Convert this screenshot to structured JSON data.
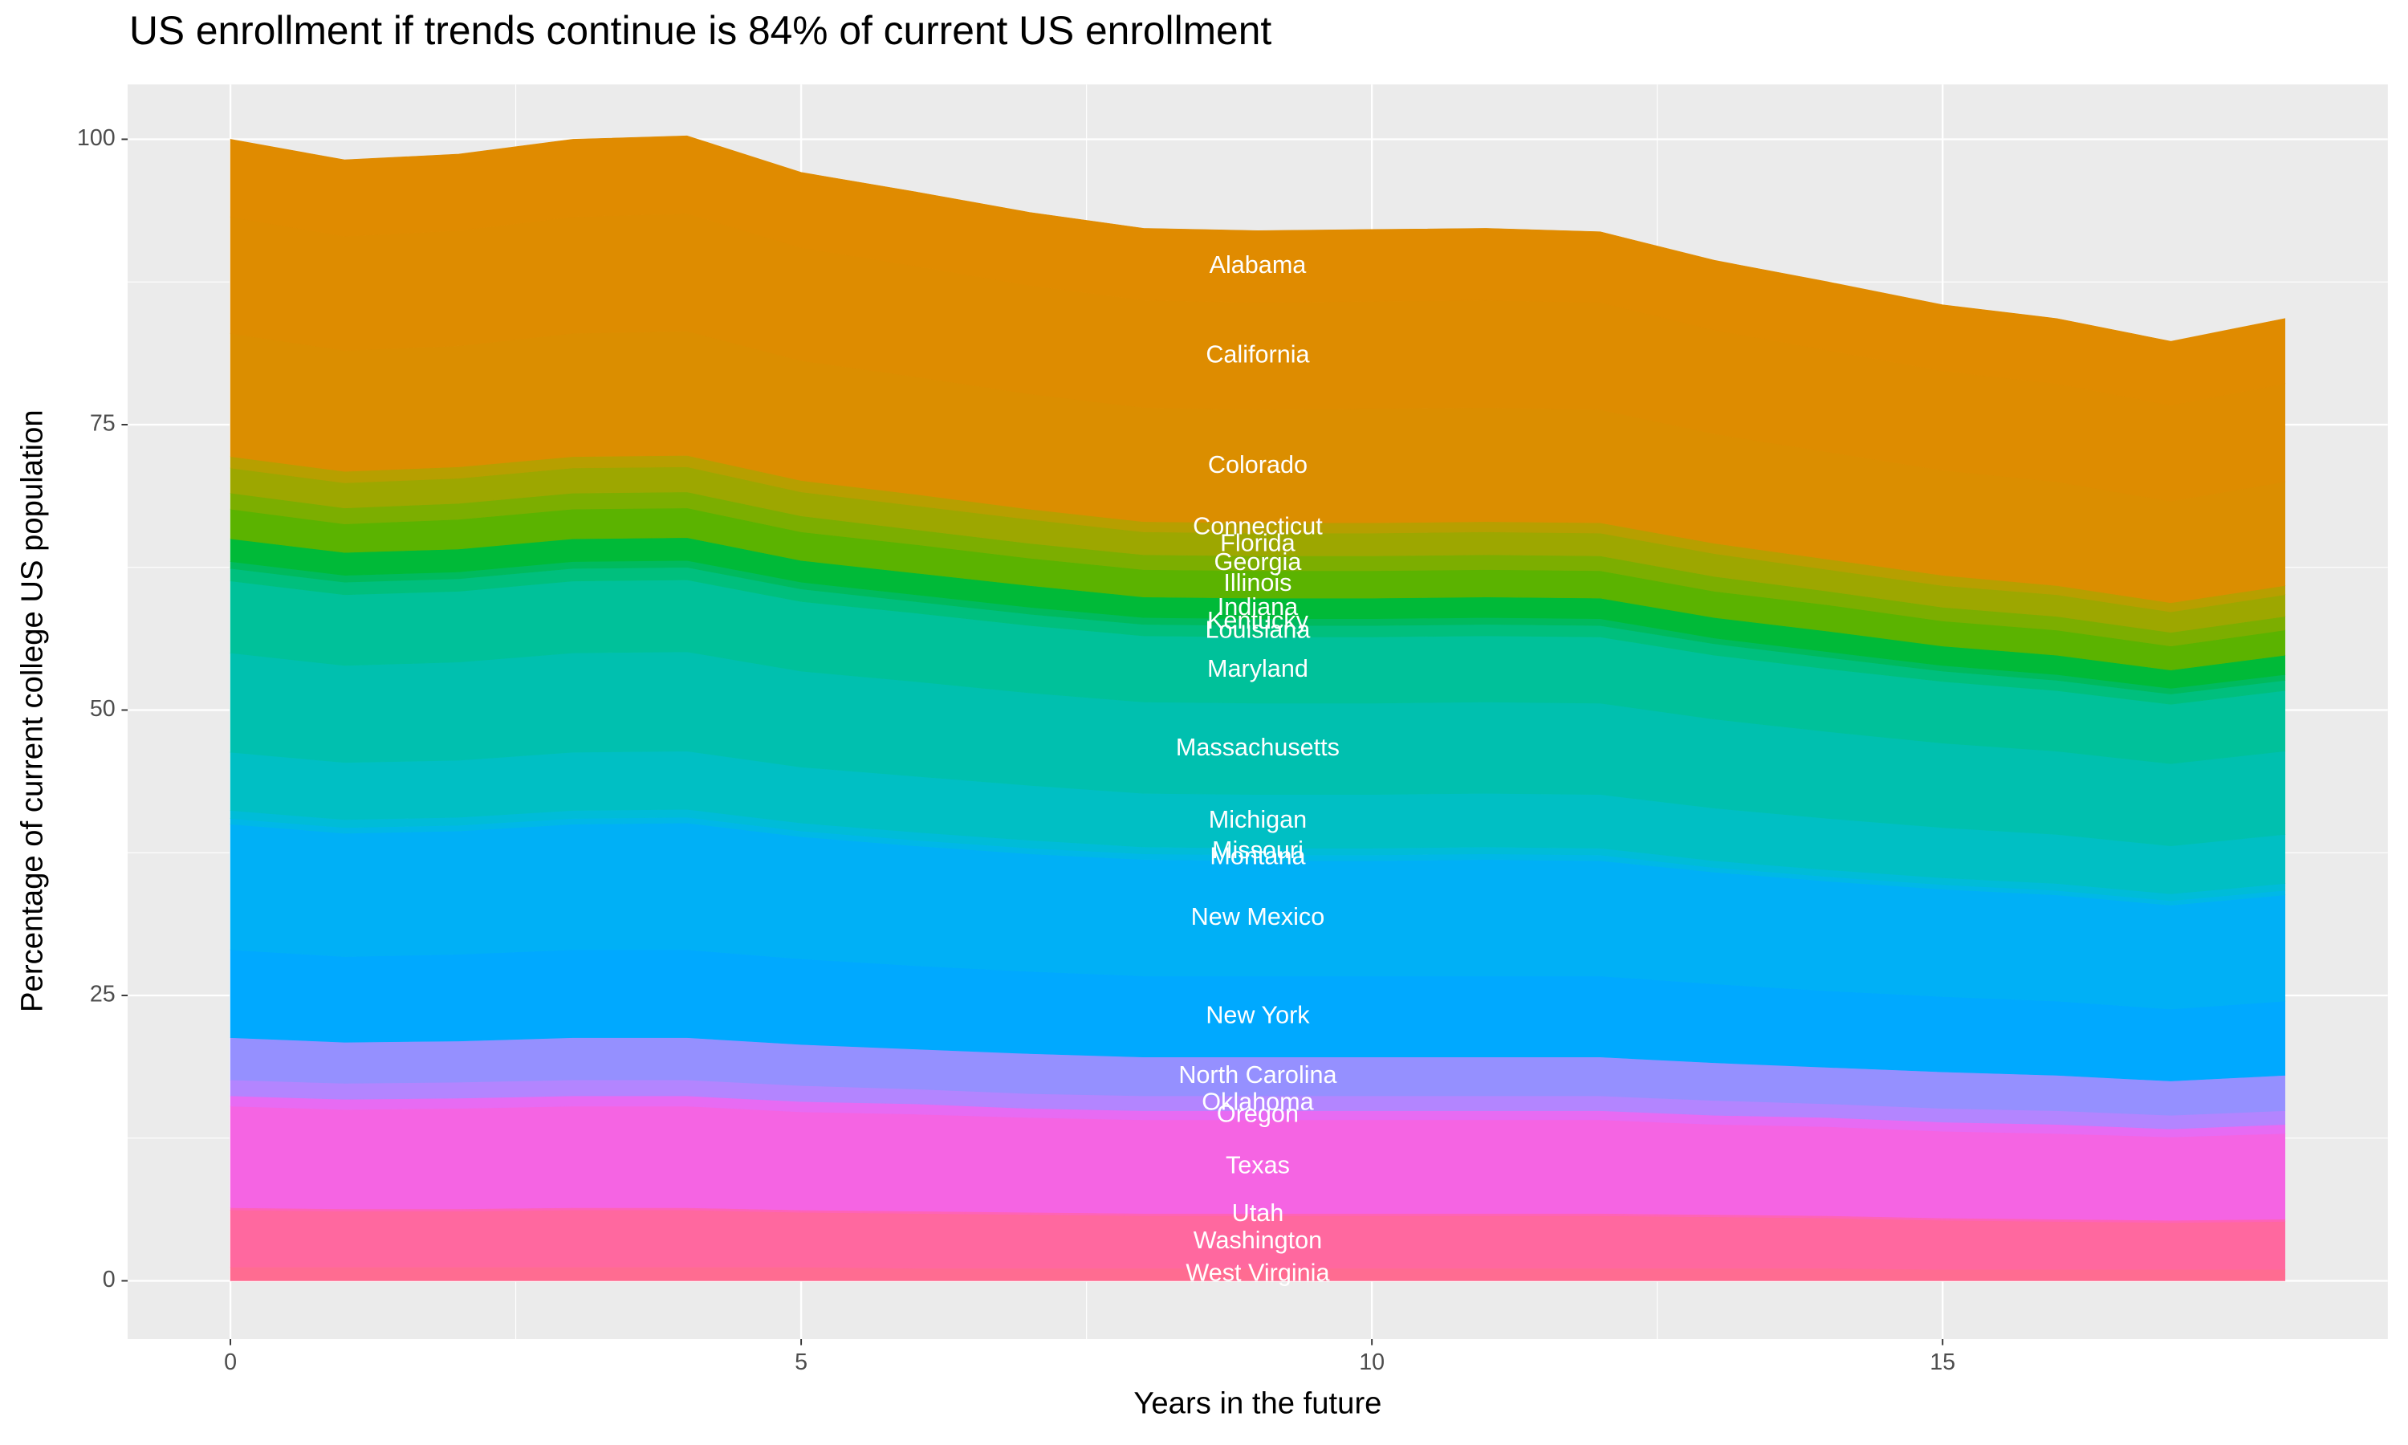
{
  "chart_data": {
    "type": "area",
    "stacked": true,
    "title": "US enrollment if trends continue is 84% of current US enrollment",
    "x_label": "Years in the future",
    "y_label": "Percentage of current college US population",
    "x": [
      0,
      1,
      2,
      3,
      4,
      5,
      6,
      7,
      8,
      9,
      10,
      11,
      12,
      13,
      14,
      15,
      16,
      17,
      18
    ],
    "xlim": [
      -0.9,
      18.9
    ],
    "ylim": [
      -5.1,
      104.8
    ],
    "xticks": [
      0,
      5,
      10,
      15
    ],
    "yticks": [
      0,
      25,
      50,
      75,
      100
    ],
    "grid": true,
    "series": [
      {
        "name": "West Virginia",
        "color": "#FF6C91",
        "values": [
          1.2,
          1.2,
          1.2,
          1.2,
          1.2,
          1.2,
          1.1,
          1.1,
          1.1,
          1.1,
          1.1,
          1.1,
          1.1,
          1.1,
          1.1,
          1.0,
          1.0,
          1.0,
          1.0
        ]
      },
      {
        "name": "Washington",
        "color": "#FF689F",
        "values": [
          5.0,
          4.9,
          4.9,
          5.0,
          5.0,
          4.8,
          4.8,
          4.7,
          4.6,
          4.6,
          4.6,
          4.6,
          4.6,
          4.5,
          4.4,
          4.3,
          4.2,
          4.1,
          4.2
        ]
      },
      {
        "name": "Utah",
        "color": "#FF63B6",
        "values": [
          0.2,
          0.2,
          0.2,
          0.2,
          0.2,
          0.2,
          0.2,
          0.2,
          0.2,
          0.2,
          0.2,
          0.2,
          0.2,
          0.2,
          0.2,
          0.2,
          0.2,
          0.2,
          0.2
        ]
      },
      {
        "name": "Texas",
        "color": "#F564E3",
        "values": [
          8.9,
          8.7,
          8.8,
          8.9,
          8.9,
          8.6,
          8.5,
          8.3,
          8.2,
          8.2,
          8.2,
          8.2,
          8.2,
          7.9,
          7.8,
          7.6,
          7.5,
          7.3,
          7.5
        ]
      },
      {
        "name": "Oregon",
        "color": "#E76BF3",
        "values": [
          0.9,
          0.9,
          0.9,
          0.9,
          0.9,
          0.9,
          0.9,
          0.8,
          0.8,
          0.8,
          0.8,
          0.8,
          0.8,
          0.8,
          0.8,
          0.8,
          0.8,
          0.7,
          0.8
        ]
      },
      {
        "name": "Oklahoma",
        "color": "#B385FF",
        "values": [
          1.4,
          1.4,
          1.4,
          1.4,
          1.4,
          1.4,
          1.3,
          1.3,
          1.3,
          1.3,
          1.3,
          1.3,
          1.3,
          1.3,
          1.2,
          1.2,
          1.2,
          1.2,
          1.2
        ]
      },
      {
        "name": "North Carolina",
        "color": "#9590FF",
        "values": [
          3.7,
          3.6,
          3.6,
          3.7,
          3.7,
          3.6,
          3.5,
          3.5,
          3.4,
          3.4,
          3.4,
          3.4,
          3.4,
          3.3,
          3.2,
          3.2,
          3.1,
          3.0,
          3.1
        ]
      },
      {
        "name": "New York",
        "color": "#00A9FF",
        "values": [
          7.7,
          7.5,
          7.6,
          7.7,
          7.7,
          7.5,
          7.3,
          7.2,
          7.1,
          7.1,
          7.1,
          7.1,
          7.1,
          6.9,
          6.7,
          6.6,
          6.5,
          6.3,
          6.5
        ]
      },
      {
        "name": "New Mexico",
        "color": "#00B0F6",
        "values": [
          11.0,
          10.8,
          10.8,
          11.0,
          11.1,
          10.7,
          10.5,
          10.3,
          10.2,
          10.1,
          10.1,
          10.2,
          10.1,
          9.8,
          9.6,
          9.4,
          9.3,
          9.1,
          9.3
        ]
      },
      {
        "name": "Montana",
        "color": "#00B8E7",
        "values": [
          0.5,
          0.5,
          0.5,
          0.5,
          0.5,
          0.5,
          0.5,
          0.5,
          0.5,
          0.5,
          0.5,
          0.5,
          0.5,
          0.4,
          0.4,
          0.4,
          0.4,
          0.4,
          0.4
        ]
      },
      {
        "name": "Missouri",
        "color": "#00BCD8",
        "values": [
          0.7,
          0.7,
          0.7,
          0.7,
          0.7,
          0.7,
          0.7,
          0.7,
          0.6,
          0.6,
          0.6,
          0.6,
          0.6,
          0.6,
          0.6,
          0.6,
          0.6,
          0.6,
          0.6
        ]
      },
      {
        "name": "Michigan",
        "color": "#00BFC4",
        "values": [
          5.1,
          5.0,
          5.0,
          5.1,
          5.1,
          4.9,
          4.9,
          4.8,
          4.7,
          4.7,
          4.7,
          4.7,
          4.7,
          4.6,
          4.5,
          4.4,
          4.3,
          4.2,
          4.3
        ]
      },
      {
        "name": "Massachusetts",
        "color": "#00C0AF",
        "values": [
          8.7,
          8.5,
          8.6,
          8.7,
          8.7,
          8.4,
          8.3,
          8.1,
          8.0,
          8.0,
          8.0,
          8.0,
          8.0,
          7.8,
          7.6,
          7.4,
          7.3,
          7.2,
          7.3
        ]
      },
      {
        "name": "Maryland",
        "color": "#00C19A",
        "values": [
          6.3,
          6.2,
          6.2,
          6.3,
          6.3,
          6.1,
          6.0,
          5.9,
          5.8,
          5.8,
          5.8,
          5.8,
          5.8,
          5.6,
          5.5,
          5.4,
          5.3,
          5.2,
          5.3
        ]
      },
      {
        "name": "Louisiana",
        "color": "#00BF7D",
        "values": [
          1.1,
          1.1,
          1.1,
          1.1,
          1.1,
          1.1,
          1.0,
          1.0,
          1.0,
          1.0,
          1.0,
          1.0,
          1.0,
          1.0,
          1.0,
          0.9,
          0.9,
          0.9,
          0.9
        ]
      },
      {
        "name": "Kentucky",
        "color": "#00BA5E",
        "values": [
          0.6,
          0.6,
          0.6,
          0.6,
          0.6,
          0.6,
          0.6,
          0.6,
          0.6,
          0.6,
          0.6,
          0.6,
          0.6,
          0.5,
          0.5,
          0.5,
          0.5,
          0.5,
          0.5
        ]
      },
      {
        "name": "Indiana",
        "color": "#00BA38",
        "values": [
          2.0,
          2.0,
          2.0,
          2.0,
          2.0,
          1.9,
          1.9,
          1.9,
          1.8,
          1.8,
          1.8,
          1.8,
          1.8,
          1.8,
          1.8,
          1.7,
          1.7,
          1.6,
          1.7
        ]
      },
      {
        "name": "Illinois",
        "color": "#5BB300",
        "values": [
          2.6,
          2.5,
          2.6,
          2.6,
          2.6,
          2.5,
          2.5,
          2.4,
          2.4,
          2.4,
          2.4,
          2.4,
          2.4,
          2.3,
          2.3,
          2.2,
          2.2,
          2.1,
          2.2
        ]
      },
      {
        "name": "Georgia",
        "color": "#7CAE00",
        "values": [
          1.4,
          1.4,
          1.4,
          1.4,
          1.4,
          1.4,
          1.3,
          1.3,
          1.3,
          1.3,
          1.3,
          1.3,
          1.3,
          1.3,
          1.2,
          1.2,
          1.2,
          1.2,
          1.2
        ]
      },
      {
        "name": "Florida",
        "color": "#9DA700",
        "values": [
          2.2,
          2.2,
          2.2,
          2.2,
          2.2,
          2.1,
          2.1,
          2.1,
          2.0,
          2.0,
          2.0,
          2.0,
          2.0,
          2.0,
          1.9,
          1.9,
          1.9,
          1.8,
          1.9
        ]
      },
      {
        "name": "Connecticut",
        "color": "#B79F00",
        "values": [
          1.0,
          1.0,
          1.0,
          1.0,
          1.0,
          1.0,
          1.0,
          0.9,
          0.9,
          0.9,
          0.9,
          0.9,
          0.9,
          0.9,
          0.9,
          0.9,
          0.8,
          0.8,
          0.8
        ]
      },
      {
        "name": "Colorado",
        "color": "#DB8E00",
        "values": [
          10.8,
          10.6,
          10.6,
          10.8,
          10.9,
          10.5,
          10.3,
          10.1,
          10.0,
          9.9,
          10.0,
          10.0,
          9.9,
          9.6,
          9.4,
          9.2,
          9.1,
          8.9,
          9.1
        ]
      },
      {
        "name": "California",
        "color": "#DE8C00",
        "values": [
          10.2,
          10.0,
          10.1,
          10.2,
          10.3,
          9.9,
          9.7,
          9.5,
          9.4,
          9.4,
          9.4,
          9.4,
          9.4,
          9.1,
          8.9,
          8.7,
          8.6,
          8.4,
          8.6
        ]
      },
      {
        "name": "Alabama",
        "color": "#E08B00",
        "values": [
          6.8,
          6.7,
          6.7,
          6.8,
          6.8,
          6.6,
          6.5,
          6.4,
          6.3,
          6.3,
          6.3,
          6.3,
          6.2,
          6.1,
          6.0,
          5.8,
          5.7,
          5.6,
          5.7
        ]
      }
    ]
  }
}
